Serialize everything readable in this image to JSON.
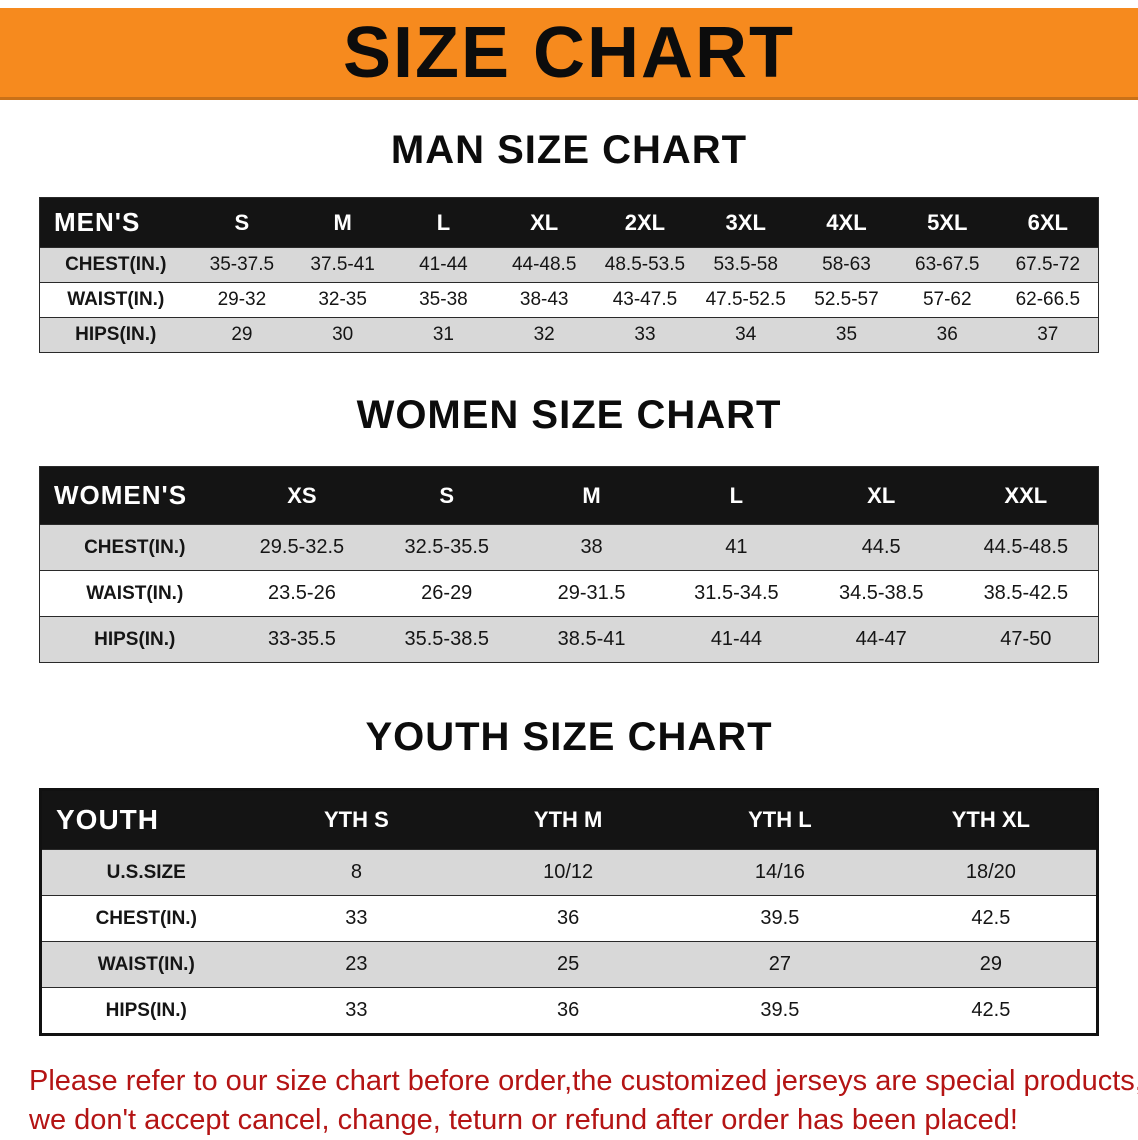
{
  "banner": {
    "title": "SIZE CHART"
  },
  "colors": {
    "banner_bg": "#f68a1e",
    "header_bg": "#141414",
    "row_alt": "#d8d8d8",
    "disclaimer": "#b41414"
  },
  "sections": [
    {
      "heading": "MAN SIZE CHART",
      "table": {
        "header": [
          "MEN'S",
          "S",
          "M",
          "L",
          "XL",
          "2XL",
          "3XL",
          "4XL",
          "5XL",
          "6XL"
        ],
        "rows": [
          [
            "CHEST(IN.)",
            "35-37.5",
            "37.5-41",
            "41-44",
            "44-48.5",
            "48.5-53.5",
            "53.5-58",
            "58-63",
            "63-67.5",
            "67.5-72"
          ],
          [
            "WAIST(IN.)",
            "29-32",
            "32-35",
            "35-38",
            "38-43",
            "43-47.5",
            "47.5-52.5",
            "52.5-57",
            "57-62",
            "62-66.5"
          ],
          [
            "HIPS(IN.)",
            "29",
            "30",
            "31",
            "32",
            "33",
            "34",
            "35",
            "36",
            "37"
          ]
        ]
      }
    },
    {
      "heading": "WOMEN SIZE CHART",
      "table": {
        "header": [
          "WOMEN'S",
          "XS",
          "S",
          "M",
          "L",
          "XL",
          "XXL"
        ],
        "rows": [
          [
            "CHEST(IN.)",
            "29.5-32.5",
            "32.5-35.5",
            "38",
            "41",
            "44.5",
            "44.5-48.5"
          ],
          [
            "WAIST(IN.)",
            "23.5-26",
            "26-29",
            "29-31.5",
            "31.5-34.5",
            "34.5-38.5",
            "38.5-42.5"
          ],
          [
            "HIPS(IN.)",
            "33-35.5",
            "35.5-38.5",
            "38.5-41",
            "41-44",
            "44-47",
            "47-50"
          ]
        ]
      }
    },
    {
      "heading": "YOUTH SIZE CHART",
      "table": {
        "header": [
          "YOUTH",
          "YTH S",
          "YTH M",
          "YTH L",
          "YTH XL"
        ],
        "rows": [
          [
            "U.S.SIZE",
            "8",
            "10/12",
            "14/16",
            "18/20"
          ],
          [
            "CHEST(IN.)",
            "33",
            "36",
            "39.5",
            "42.5"
          ],
          [
            "WAIST(IN.)",
            "23",
            "25",
            "27",
            "29"
          ],
          [
            "HIPS(IN.)",
            "33",
            "36",
            "39.5",
            "42.5"
          ]
        ]
      }
    }
  ],
  "disclaimer": {
    "line1": "Please refer to our size chart before order,the customized jerseys are special products,",
    "line2": "we don't accept cancel, change, teturn or refund after order has been placed!"
  }
}
